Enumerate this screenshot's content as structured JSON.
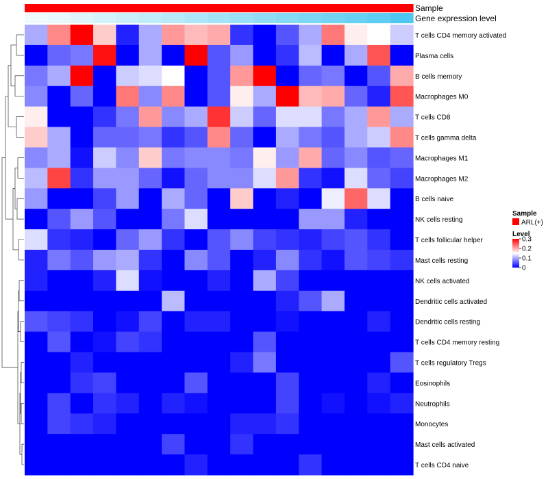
{
  "chart_data": {
    "type": "heatmap",
    "title": "",
    "annotation_rows": [
      {
        "name": "Sample",
        "label": "Sample",
        "color": "#FF0000"
      },
      {
        "name": "Gene expression level",
        "label": "Gene expression level",
        "low_color": "#F2FBFD",
        "high_color": "#4EC8F0"
      }
    ],
    "rows": [
      "T cells CD4 memory activated",
      "Plasma cells",
      "B cells memory",
      "Macrophages M0",
      "T cells CD8",
      "T cells gamma delta",
      "Macrophages M1",
      "Macrophages M2",
      "B cells naive",
      "NK cells resting",
      "T cells follicular helper",
      "Mast cells resting",
      "NK cells activated",
      "Dendritic cells activated",
      "Dendritic cells resting",
      "T cells CD4 memory resting",
      "T cells regulatory  Tregs",
      "Eosinophils",
      "Neutrophils",
      "Monocytes",
      "Mast cells activated",
      "T cells CD4 naive"
    ],
    "values": [
      [
        0.1,
        0.22,
        0.3,
        0.18,
        0.02,
        0.1,
        0.21,
        0.19,
        0.2,
        0.03,
        0.0,
        0.05,
        0.1,
        0.23,
        0.16,
        0.15,
        0.12
      ],
      [
        0.0,
        0.06,
        0.07,
        0.29,
        0.0,
        0.1,
        0.0,
        0.3,
        0.05,
        0.09,
        0.0,
        0.03,
        0.11,
        0.0,
        0.1,
        0.25,
        0.0
      ],
      [
        0.07,
        0.1,
        0.3,
        0.0,
        0.12,
        0.13,
        0.15,
        0.0,
        0.05,
        0.21,
        0.3,
        0.0,
        0.06,
        0.07,
        0.0,
        0.05,
        0.2
      ],
      [
        0.08,
        0.0,
        0.06,
        0.0,
        0.23,
        0.08,
        0.22,
        0.0,
        0.05,
        0.16,
        0.1,
        0.3,
        0.19,
        0.2,
        0.06,
        0.02,
        0.25
      ],
      [
        0.16,
        0.0,
        0.0,
        0.03,
        0.07,
        0.21,
        0.08,
        0.1,
        0.27,
        0.12,
        0.06,
        0.13,
        0.13,
        0.07,
        0.1,
        0.21,
        0.1
      ],
      [
        0.18,
        0.1,
        0.0,
        0.06,
        0.06,
        0.07,
        0.03,
        0.05,
        0.22,
        0.06,
        0.0,
        0.1,
        0.07,
        0.05,
        0.1,
        0.12,
        0.22
      ],
      [
        0.08,
        0.1,
        0.01,
        0.12,
        0.08,
        0.18,
        0.07,
        0.08,
        0.08,
        0.07,
        0.16,
        0.09,
        0.2,
        0.06,
        0.08,
        0.05,
        0.06
      ],
      [
        0.11,
        0.26,
        0.03,
        0.09,
        0.09,
        0.06,
        0.01,
        0.06,
        0.08,
        0.08,
        0.13,
        0.21,
        0.03,
        0.01,
        0.13,
        0.06,
        0.04
      ],
      [
        0.09,
        0.0,
        0.0,
        0.04,
        0.09,
        0.0,
        0.1,
        0.06,
        0.0,
        0.18,
        0.0,
        0.02,
        0.0,
        0.14,
        0.24,
        0.13,
        0.0
      ],
      [
        0.0,
        0.05,
        0.09,
        0.05,
        0.0,
        0.0,
        0.07,
        0.13,
        0.0,
        0.0,
        0.0,
        0.0,
        0.09,
        0.09,
        0.02,
        0.0,
        0.0
      ],
      [
        0.13,
        0.03,
        0.02,
        0.0,
        0.06,
        0.09,
        0.03,
        0.0,
        0.05,
        0.08,
        0.04,
        0.03,
        0.02,
        0.04,
        0.05,
        0.03,
        0.0
      ],
      [
        0.02,
        0.07,
        0.05,
        0.09,
        0.1,
        0.03,
        0.0,
        0.08,
        0.05,
        0.0,
        0.02,
        0.08,
        0.03,
        0.01,
        0.05,
        0.04,
        0.03
      ],
      [
        0.02,
        0.0,
        0.0,
        0.02,
        0.13,
        0.01,
        0.0,
        0.0,
        0.02,
        0.0,
        0.1,
        0.04,
        0.0,
        0.0,
        0.0,
        0.0,
        0.0
      ],
      [
        0.0,
        0.0,
        0.0,
        0.0,
        0.0,
        0.0,
        0.11,
        0.0,
        0.0,
        0.0,
        0.0,
        0.02,
        0.05,
        0.1,
        0.0,
        0.0,
        0.0
      ],
      [
        0.05,
        0.04,
        0.03,
        0.0,
        0.01,
        0.04,
        0.0,
        0.02,
        0.02,
        0.0,
        0.0,
        0.01,
        0.0,
        0.0,
        0.0,
        0.02,
        0.0
      ],
      [
        0.0,
        0.05,
        0.0,
        0.01,
        0.04,
        0.03,
        0.0,
        0.0,
        0.0,
        0.0,
        0.05,
        0.0,
        0.0,
        0.0,
        0.0,
        0.0,
        0.0
      ],
      [
        0.0,
        0.0,
        0.02,
        0.0,
        0.0,
        0.0,
        0.0,
        0.0,
        0.0,
        0.02,
        0.07,
        0.0,
        0.0,
        0.0,
        0.0,
        0.0,
        0.05
      ],
      [
        0.0,
        0.0,
        0.03,
        0.04,
        0.0,
        0.0,
        0.0,
        0.05,
        0.0,
        0.0,
        0.0,
        0.04,
        0.0,
        0.0,
        0.0,
        0.02,
        0.0
      ],
      [
        0.0,
        0.04,
        0.0,
        0.03,
        0.02,
        0.0,
        0.02,
        0.01,
        0.0,
        0.0,
        0.0,
        0.04,
        0.0,
        0.01,
        0.0,
        0.01,
        0.02
      ],
      [
        0.0,
        0.04,
        0.03,
        0.02,
        0.0,
        0.0,
        0.0,
        0.0,
        0.0,
        0.02,
        0.02,
        0.03,
        0.0,
        0.0,
        0.0,
        0.0,
        0.0
      ],
      [
        0.0,
        0.0,
        0.0,
        0.0,
        0.0,
        0.0,
        0.04,
        0.0,
        0.0,
        0.03,
        0.0,
        0.0,
        0.0,
        0.0,
        0.0,
        0.0,
        0.0
      ],
      [
        0.0,
        0.0,
        0.0,
        0.0,
        0.0,
        0.0,
        0.0,
        0.02,
        0.0,
        0.0,
        0.0,
        0.0,
        0.03,
        0.0,
        0.0,
        0.0,
        0.0
      ]
    ],
    "gene_expression_level": [
      0.02,
      0.06,
      0.12,
      0.18,
      0.24,
      0.3,
      0.36,
      0.42,
      0.48,
      0.54,
      0.6,
      0.66,
      0.72,
      0.78,
      0.84,
      0.9,
      1.0
    ],
    "color_scale": {
      "min": 0,
      "mid": 0.15,
      "max": 0.3,
      "low": "#0000FF",
      "mid_color": "#FFFFFF",
      "high": "#FF0000"
    },
    "legend": {
      "sample_title": "Sample",
      "sample_entry": "ARL(+)",
      "level_title": "Level",
      "ticks": [
        "0.3",
        "0.2",
        "0.1",
        "0"
      ],
      "tick_values": [
        0.3,
        0.2,
        0.1,
        0
      ],
      "placement": "right"
    },
    "dendrogram": "rows"
  }
}
